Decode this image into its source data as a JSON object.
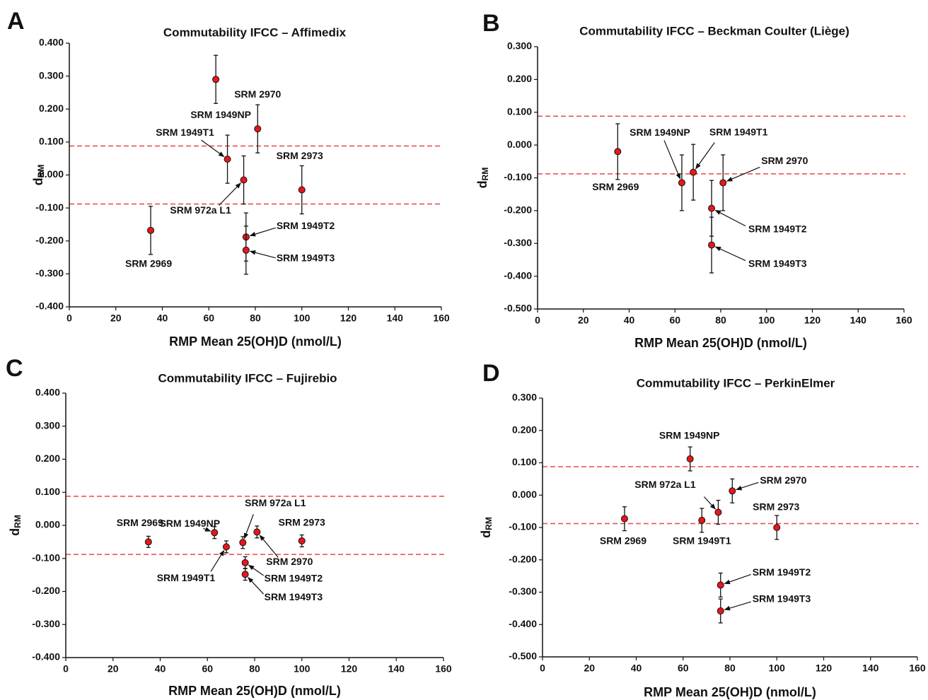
{
  "chart_data": [
    {
      "type": "scatter",
      "panel": "A",
      "title": "Commutability IFCC – Affimedix",
      "x_label": "RMP Mean 25(OH)D (nmol/L)",
      "y_label": "d",
      "y_label_subscript": "RM",
      "xlim": [
        0,
        160
      ],
      "xticks": [
        0,
        20,
        40,
        60,
        80,
        100,
        120,
        140,
        160
      ],
      "ylim": [
        -0.4,
        0.4
      ],
      "yticks": [
        {
          "value": -0.4,
          "label": "-0.400"
        },
        {
          "value": -0.3,
          "label": "-0.300"
        },
        {
          "value": -0.2,
          "label": "-0.200"
        },
        {
          "value": -0.1,
          "label": "-0.100"
        },
        {
          "value": 0,
          "label": "0.000"
        },
        {
          "value": 0.1,
          "label": "0.100"
        },
        {
          "value": 0.2,
          "label": "0.200"
        },
        {
          "value": 0.3,
          "label": "0.300"
        },
        {
          "value": 0.4,
          "label": "0.400"
        }
      ],
      "point_labels": [
        "SRM 2969",
        "SRM 1949NP",
        "SRM 1949T1",
        "SRM 972a L1",
        "SRM 2970",
        "SRM 1949T2",
        "SRM 1949T3",
        "SRM 2973"
      ],
      "x": [
        35,
        63,
        68,
        75,
        81,
        76,
        76,
        100
      ],
      "values": [
        -0.168,
        0.29,
        0.048,
        -0.015,
        0.14,
        -0.188,
        -0.228,
        -0.045
      ],
      "errors": [
        0.073,
        0.073,
        0.073,
        0.073,
        0.073,
        0.073,
        0.073,
        0.073
      ],
      "limit_lines": [
        0.088,
        -0.088
      ],
      "color": "#e8161b",
      "limit_color": "#e8464a"
    },
    {
      "type": "scatter",
      "panel": "B",
      "title": "Commutability IFCC – Beckman Coulter (Liège)",
      "x_label": "RMP Mean 25(OH)D (nmol/L)",
      "y_label": "d",
      "y_label_subscript": "RM",
      "xlim": [
        0,
        160
      ],
      "xticks": [
        0,
        20,
        40,
        60,
        80,
        100,
        120,
        140,
        160
      ],
      "ylim": [
        -0.5,
        0.3
      ],
      "yticks": [
        {
          "value": -0.5,
          "label": "-0.500"
        },
        {
          "value": -0.4,
          "label": "-0.400"
        },
        {
          "value": -0.3,
          "label": "-0.300"
        },
        {
          "value": -0.2,
          "label": "-0.200"
        },
        {
          "value": -0.1,
          "label": "-0.100"
        },
        {
          "value": 0,
          "label": "0.000"
        },
        {
          "value": 0.1,
          "label": "0.100"
        },
        {
          "value": 0.2,
          "label": "0.200"
        },
        {
          "value": 0.3,
          "label": "0.300"
        }
      ],
      "point_labels": [
        "SRM 2969",
        "SRM 1949NP",
        "SRM 1949T1",
        "SRM 2970",
        "SRM 1949T2",
        "SRM 1949T3"
      ],
      "x": [
        35,
        63,
        68,
        81,
        76,
        76
      ],
      "values": [
        -0.02,
        -0.115,
        -0.083,
        -0.115,
        -0.193,
        -0.305
      ],
      "errors": [
        0.085,
        0.085,
        0.085,
        0.085,
        0.085,
        0.085
      ],
      "limit_lines": [
        0.088,
        -0.088
      ],
      "color": "#e8161b",
      "limit_color": "#e8464a"
    },
    {
      "type": "scatter",
      "panel": "C",
      "title": "Commutability IFCC – Fujirebio",
      "x_label": "RMP Mean 25(OH)D (nmol/L)",
      "y_label": "d",
      "y_label_subscript": "RM",
      "xlim": [
        0,
        160
      ],
      "xticks": [
        0,
        20,
        40,
        60,
        80,
        100,
        120,
        140,
        160
      ],
      "ylim": [
        -0.4,
        0.4
      ],
      "yticks": [
        {
          "value": -0.4,
          "label": "-0.400"
        },
        {
          "value": -0.3,
          "label": "-0.300"
        },
        {
          "value": -0.2,
          "label": "-0.200"
        },
        {
          "value": -0.1,
          "label": "-0.100"
        },
        {
          "value": 0,
          "label": "0.000"
        },
        {
          "value": 0.1,
          "label": "0.100"
        },
        {
          "value": 0.2,
          "label": "0.200"
        },
        {
          "value": 0.3,
          "label": "0.300"
        },
        {
          "value": 0.4,
          "label": "0.400"
        }
      ],
      "point_labels": [
        "SRM 2969",
        "SRM 1949NP",
        "SRM 1949T1",
        "SRM 972a L1",
        "SRM 2970",
        "SRM 1949T2",
        "SRM 1949T3",
        "SRM 2973"
      ],
      "x": [
        35,
        63,
        68,
        75,
        81,
        76,
        76,
        100
      ],
      "values": [
        -0.05,
        -0.022,
        -0.065,
        -0.052,
        -0.02,
        -0.113,
        -0.148,
        -0.047
      ],
      "errors": [
        0.017,
        0.018,
        0.018,
        0.018,
        0.018,
        0.018,
        0.018,
        0.018
      ],
      "limit_lines": [
        0.088,
        -0.088
      ],
      "color": "#e8161b",
      "limit_color": "#e8464a"
    },
    {
      "type": "scatter",
      "panel": "D",
      "title": "Commutability IFCC – PerkinElmer",
      "x_label": "RMP Mean 25(OH)D (nmol/L)",
      "y_label": "d",
      "y_label_subscript": "RM",
      "xlim": [
        0,
        160
      ],
      "xticks": [
        0,
        20,
        40,
        60,
        80,
        100,
        120,
        140,
        160
      ],
      "ylim": [
        -0.5,
        0.3
      ],
      "yticks": [
        {
          "value": -0.5,
          "label": "-0.500"
        },
        {
          "value": -0.4,
          "label": "-0.400"
        },
        {
          "value": -0.3,
          "label": "-0.300"
        },
        {
          "value": -0.2,
          "label": "-0.200"
        },
        {
          "value": -0.1,
          "label": "-0.100"
        },
        {
          "value": 0,
          "label": "0.000"
        },
        {
          "value": 0.1,
          "label": "0.100"
        },
        {
          "value": 0.2,
          "label": "0.200"
        },
        {
          "value": 0.3,
          "label": "0.300"
        }
      ],
      "point_labels": [
        "SRM 2969",
        "SRM 1949NP",
        "SRM 1949T1",
        "SRM 972a L1",
        "SRM 2970",
        "SRM 2973",
        "SRM 1949T2",
        "SRM 1949T3"
      ],
      "x": [
        35,
        63,
        68,
        75,
        81,
        100,
        76,
        76
      ],
      "values": [
        -0.073,
        0.112,
        -0.078,
        -0.053,
        0.013,
        -0.1,
        -0.278,
        -0.358
      ],
      "errors": [
        0.037,
        0.037,
        0.037,
        0.037,
        0.037,
        0.037,
        0.037,
        0.037
      ],
      "limit_lines": [
        0.088,
        -0.088
      ],
      "color": "#e8161b",
      "limit_color": "#e8464a"
    }
  ]
}
